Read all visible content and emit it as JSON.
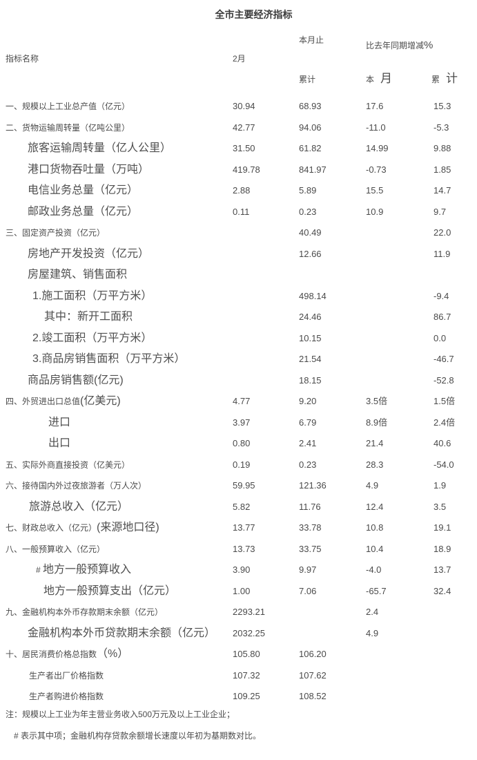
{
  "title": "全市主要经济指标",
  "header": {
    "indicator": "指标名称",
    "month": "2月",
    "cum_top": "本月止",
    "cum_bottom": "累计",
    "change_group": "比去年同期增减",
    "change_group_pct": "%",
    "change_month_sm": "本",
    "change_month_lg": "月",
    "change_cum_sm": "累",
    "change_cum_lg": "计"
  },
  "rows": [
    {
      "indent": 8,
      "parts": [
        [
          "sm",
          "一、规模以上工业总产值（亿元）"
        ]
      ],
      "vals": [
        "30.94",
        "68.93",
        "17.6",
        "15.3"
      ]
    },
    {
      "indent": 8,
      "parts": [
        [
          "sm",
          "二、货物运输周转量（亿吨公里）"
        ]
      ],
      "vals": [
        "42.77",
        "94.06",
        "-11.0",
        "-5.3"
      ]
    },
    {
      "indent": 40,
      "parts": [
        [
          "lg",
          "旅客运输周转量（亿人公里）"
        ]
      ],
      "vals": [
        "31.50",
        "61.82",
        "14.99",
        "9.88"
      ]
    },
    {
      "indent": 40,
      "parts": [
        [
          "lg",
          "港口货物吞吐量（万吨）"
        ]
      ],
      "vals": [
        "419.78",
        "841.97",
        "-0.73",
        "1.85"
      ]
    },
    {
      "indent": 40,
      "parts": [
        [
          "lg",
          "电信业务总量（亿元）"
        ]
      ],
      "vals": [
        "2.88",
        "5.89",
        "15.5",
        "14.7"
      ]
    },
    {
      "indent": 40,
      "parts": [
        [
          "lg",
          "邮政业务总量（亿元）"
        ]
      ],
      "vals": [
        "0.11",
        "0.23",
        "10.9",
        "9.7"
      ]
    },
    {
      "indent": 8,
      "parts": [
        [
          "sm",
          "三、固定资产投资（亿元）"
        ]
      ],
      "vals": [
        "",
        "40.49",
        "",
        "22.0"
      ]
    },
    {
      "indent": 40,
      "parts": [
        [
          "lg",
          "房地产开发投资（亿元）"
        ]
      ],
      "vals": [
        "",
        "12.66",
        "",
        "11.9"
      ]
    },
    {
      "indent": 40,
      "parts": [
        [
          "lg",
          "房屋建筑、销售面积"
        ]
      ],
      "vals": [
        "",
        "",
        "",
        ""
      ]
    },
    {
      "indent": 47,
      "parts": [
        [
          "lg",
          "1.施工面积（万平方米）"
        ]
      ],
      "vals": [
        "",
        "498.14",
        "",
        "-9.4"
      ]
    },
    {
      "indent": 64,
      "parts": [
        [
          "lg",
          "其中：新开工面积"
        ]
      ],
      "vals": [
        "",
        "24.46",
        "",
        "86.7"
      ]
    },
    {
      "indent": 47,
      "parts": [
        [
          "lg",
          "2.竣工面积（万平方米）"
        ]
      ],
      "vals": [
        "",
        "10.15",
        "",
        "0.0"
      ]
    },
    {
      "indent": 47,
      "parts": [
        [
          "lg",
          "3.商品房销售面积（万平方米）"
        ]
      ],
      "vals": [
        "",
        "21.54",
        "",
        "-46.7"
      ]
    },
    {
      "indent": 40,
      "parts": [
        [
          "lg",
          "商品房销售额(亿元)"
        ]
      ],
      "vals": [
        "",
        "18.15",
        "",
        "-52.8"
      ]
    },
    {
      "indent": 8,
      "parts": [
        [
          "sm",
          "四、外贸进出口总值"
        ],
        [
          "lg",
          "(亿美元)"
        ]
      ],
      "vals": [
        "4.77",
        "9.20",
        "3.5倍",
        "1.5倍"
      ]
    },
    {
      "indent": 70,
      "parts": [
        [
          "lg",
          "进口"
        ]
      ],
      "vals": [
        "3.97",
        "6.79",
        "8.9倍",
        "2.4倍"
      ]
    },
    {
      "indent": 70,
      "parts": [
        [
          "lg",
          "出口"
        ]
      ],
      "vals": [
        "0.80",
        "2.41",
        "21.4",
        "40.6"
      ]
    },
    {
      "indent": 8,
      "parts": [
        [
          "sm",
          "五、实际外商直接投资（亿美元）"
        ]
      ],
      "vals": [
        "0.19",
        "0.23",
        "28.3",
        "-54.0"
      ]
    },
    {
      "indent": 8,
      "parts": [
        [
          "sm",
          "六、接待国内外过夜旅游者（万人次）"
        ]
      ],
      "vals": [
        "59.95",
        "121.36",
        "4.9",
        "1.9"
      ]
    },
    {
      "indent": 42,
      "parts": [
        [
          "lg",
          "旅游总收入（亿元）"
        ]
      ],
      "vals": [
        "5.82",
        "11.76",
        "12.4",
        "3.5"
      ]
    },
    {
      "indent": 8,
      "parts": [
        [
          "sm",
          "七、财政总收入（亿元）"
        ],
        [
          "lg",
          "(来源地口径)"
        ]
      ],
      "vals": [
        "13.77",
        "33.78",
        "10.8",
        "19.1"
      ]
    },
    {
      "indent": 8,
      "parts": [
        [
          "sm",
          "八、一般预算收入（亿元）"
        ]
      ],
      "vals": [
        "13.73",
        "33.75",
        "10.4",
        "18.9"
      ]
    },
    {
      "indent": 52,
      "parts": [
        [
          "sm",
          "# "
        ],
        [
          "lg",
          "地方一般预算收入"
        ]
      ],
      "vals": [
        "3.90",
        "9.97",
        "-4.0",
        "13.7"
      ]
    },
    {
      "indent": 63,
      "parts": [
        [
          "lg",
          "地方一般预算支出（亿元）"
        ]
      ],
      "vals": [
        "1.00",
        "7.06",
        "-65.7",
        "32.4"
      ]
    },
    {
      "indent": 8,
      "parts": [
        [
          "sm",
          "九、金融机构本外币存款期末余额（亿元）"
        ]
      ],
      "vals": [
        "2293.21",
        "",
        "2.4",
        ""
      ]
    },
    {
      "indent": 40,
      "parts": [
        [
          "lg",
          "金融机构本外币贷款期末余额（亿元）"
        ]
      ],
      "vals": [
        "2032.25",
        "",
        "4.9",
        ""
      ]
    },
    {
      "indent": 8,
      "parts": [
        [
          "sm",
          "十、居民消费价格总指数"
        ],
        [
          "lg",
          "（%）"
        ]
      ],
      "vals": [
        "105.80",
        "106.20",
        "",
        ""
      ]
    },
    {
      "indent": 42,
      "parts": [
        [
          "sm",
          "生产者出厂价格指数"
        ]
      ],
      "vals": [
        "107.32",
        "107.62",
        "",
        ""
      ]
    },
    {
      "indent": 42,
      "parts": [
        [
          "sm",
          "生产者购进价格指数"
        ]
      ],
      "vals": [
        "109.25",
        "108.52",
        "",
        ""
      ]
    }
  ],
  "notes": {
    "note1": "注：规模以上工业为年主营业务收入500万元及以上工业企业；",
    "note2": "# 表示其中项；金融机构存贷款余额增长速度以年初为基期数对比。"
  },
  "colors": {
    "text": "#4a4a4a",
    "title": "#3a3a3a",
    "background": "#ffffff"
  }
}
